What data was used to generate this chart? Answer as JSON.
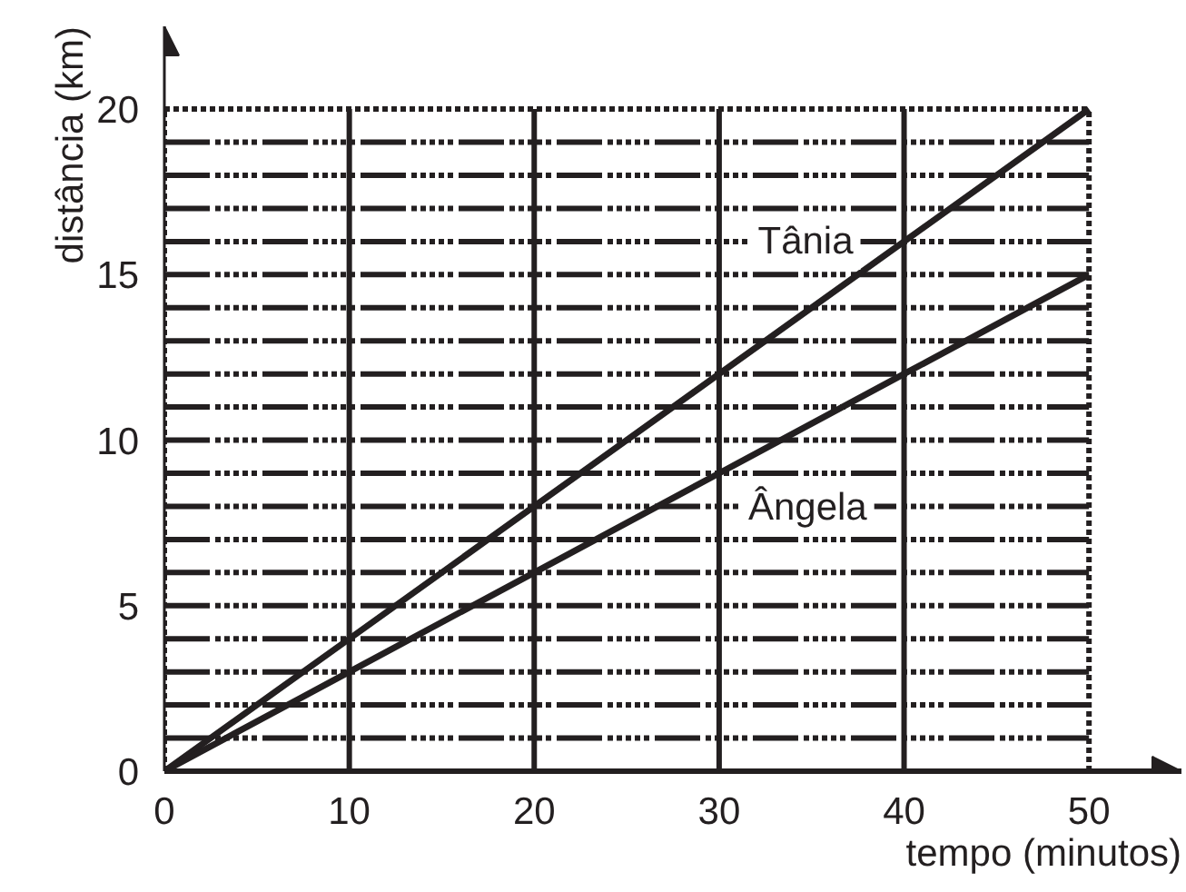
{
  "chart_data": {
    "type": "line",
    "xlabel": "tempo (minutos)",
    "ylabel": "distância (km)",
    "x": [
      0,
      10,
      20,
      30,
      40,
      50
    ],
    "series": [
      {
        "name": "Tânia",
        "color": "#231f20",
        "values": [
          0,
          4,
          8,
          12,
          16,
          20
        ]
      },
      {
        "name": "Ângela",
        "color": "#231f20",
        "values": [
          0,
          3,
          6,
          9,
          12,
          15
        ]
      }
    ],
    "xlim": [
      0,
      55
    ],
    "ylim": [
      0,
      22.5
    ],
    "xticks": [
      0,
      10,
      20,
      30,
      40,
      50
    ],
    "yticks": [
      0,
      {
        "value": 1,
        "label": null
      },
      {
        "value": 2,
        "label": null
      },
      {
        "value": 3,
        "label": null
      },
      {
        "value": 4,
        "label": null
      },
      5,
      {
        "value": 6,
        "label": null
      },
      {
        "value": 7,
        "label": null
      },
      {
        "value": 8,
        "label": null
      },
      {
        "value": 9,
        "label": null
      },
      10,
      {
        "value": 11,
        "label": null
      },
      {
        "value": 12,
        "label": null
      },
      {
        "value": 13,
        "label": null
      },
      {
        "value": 14,
        "label": null
      },
      15,
      {
        "value": 16,
        "label": null
      },
      {
        "value": 17,
        "label": null
      },
      {
        "value": 18,
        "label": null
      },
      {
        "value": 19,
        "label": null
      },
      20
    ],
    "grid": true,
    "line_style": "solid"
  }
}
